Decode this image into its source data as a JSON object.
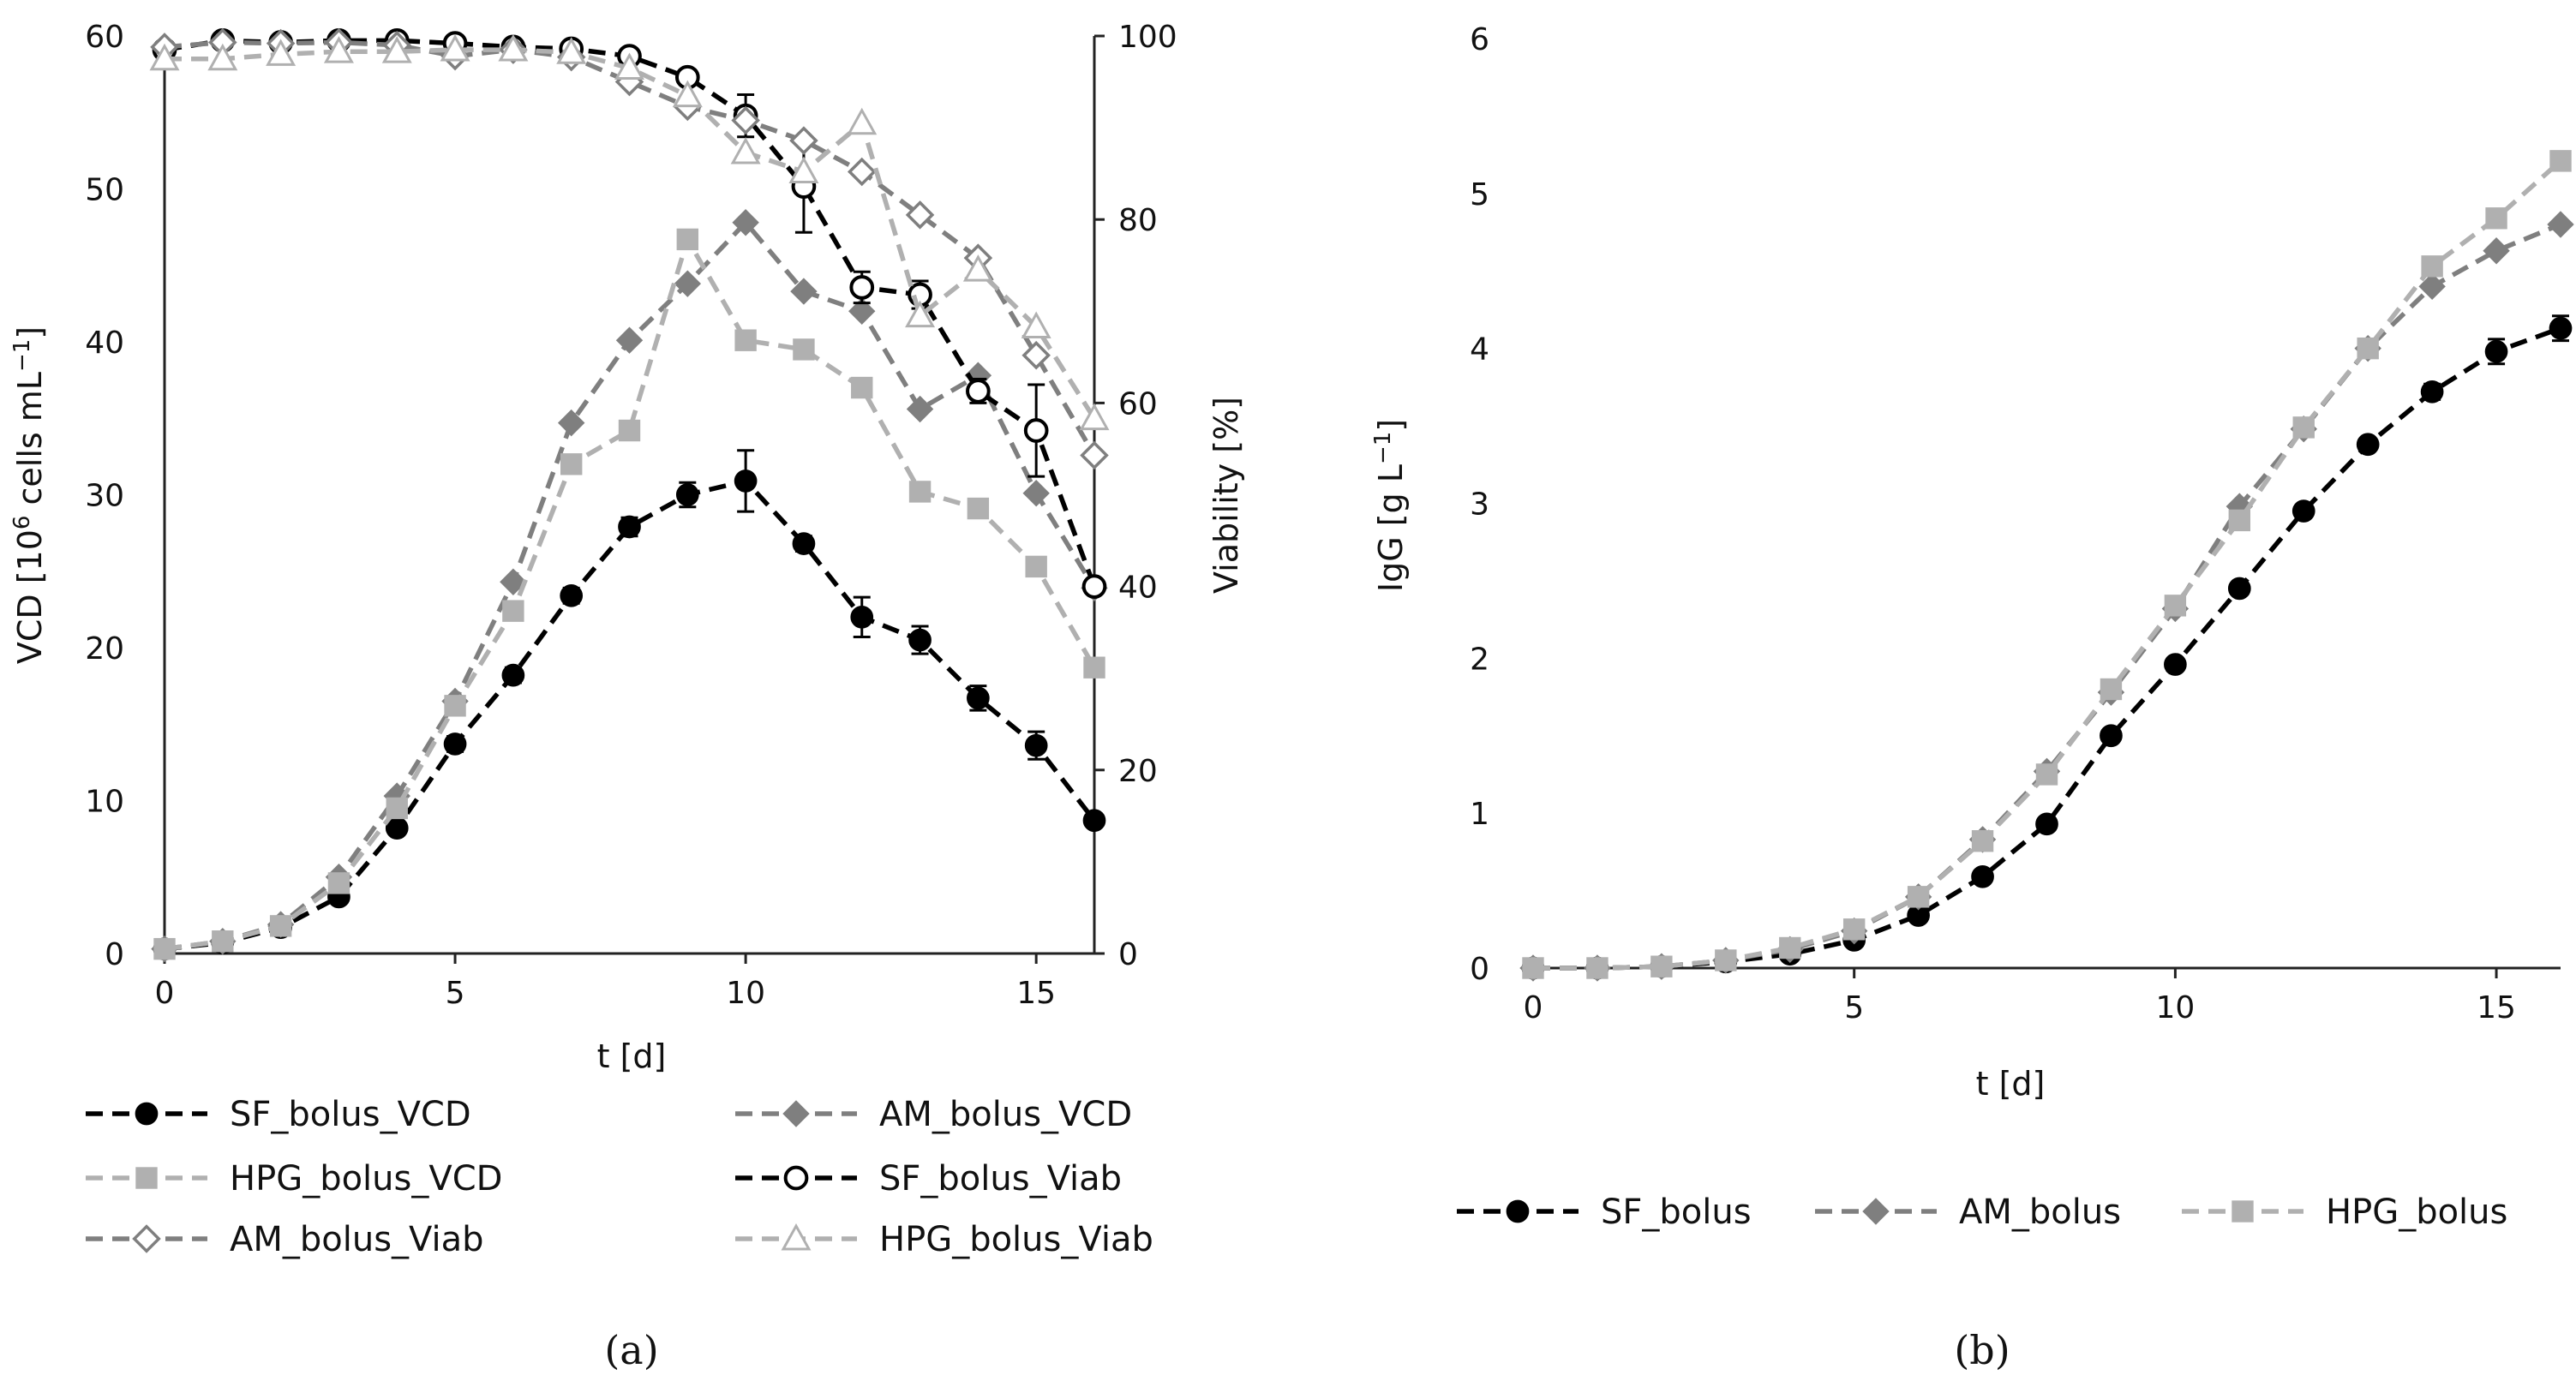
{
  "chart_data": [
    {
      "panel_label": "(a)",
      "type": "line",
      "xlabel": "t [d]",
      "ylabel": "VCD [10",
      "ylabel_sup": "6",
      "ylabel_mid": " cells mL",
      "ylabel_sup2": "−1",
      "ylabel_end": "]",
      "y2label": "Viability [%]",
      "xlim": [
        0,
        16
      ],
      "ylim": [
        0,
        60
      ],
      "y2lim": [
        0,
        100
      ],
      "xticks": [
        0,
        5,
        10,
        15
      ],
      "yticks": [
        0,
        10,
        20,
        30,
        40,
        50,
        60
      ],
      "y2ticks": [
        0,
        20,
        40,
        60,
        80,
        100
      ],
      "series": [
        {
          "name": "SF_bolus_VCD",
          "axis": "left",
          "marker": "circle",
          "fill": "#000000",
          "stroke": "#000000",
          "line": "#000000",
          "x": [
            0,
            1,
            2,
            3,
            4,
            5,
            6,
            7,
            8,
            9,
            10,
            11,
            12,
            13,
            14,
            15,
            16
          ],
          "values": [
            0.3,
            0.7,
            1.7,
            3.7,
            8.2,
            13.7,
            18.2,
            23.4,
            27.9,
            30.0,
            30.9,
            26.8,
            22.0,
            20.5,
            16.7,
            13.6,
            8.7
          ],
          "errors": [
            0.1,
            0.1,
            0.2,
            0.3,
            0.4,
            0.5,
            0.5,
            0.5,
            0.6,
            0.8,
            2.0,
            0.5,
            1.3,
            0.9,
            0.8,
            0.9,
            0.4
          ]
        },
        {
          "name": "AM_bolus_VCD",
          "axis": "left",
          "marker": "diamond",
          "fill": "#7f7f7f",
          "stroke": "#7f7f7f",
          "line": "#7f7f7f",
          "x": [
            0,
            1,
            2,
            3,
            4,
            5,
            6,
            7,
            8,
            9,
            10,
            11,
            12,
            13,
            14,
            15,
            16
          ],
          "values": [
            0.3,
            0.8,
            1.9,
            5.0,
            10.3,
            16.5,
            24.3,
            34.7,
            40.1,
            43.8,
            47.8,
            43.3,
            42.0,
            35.6,
            37.8,
            30.1,
            23.9
          ],
          "errors": []
        },
        {
          "name": "HPG_bolus_VCD",
          "axis": "left",
          "marker": "square",
          "fill": "#b0b0b0",
          "stroke": "#b0b0b0",
          "line": "#b0b0b0",
          "x": [
            0,
            1,
            2,
            3,
            4,
            5,
            6,
            7,
            8,
            9,
            10,
            11,
            12,
            13,
            14,
            15,
            16
          ],
          "values": [
            0.3,
            0.8,
            1.8,
            4.6,
            9.5,
            16.2,
            22.4,
            32.0,
            34.2,
            46.7,
            40.1,
            39.5,
            37.0,
            30.2,
            29.1,
            25.3,
            18.7
          ],
          "errors": []
        },
        {
          "name": "SF_bolus_Viab",
          "axis": "right",
          "marker": "circle-open",
          "fill": "#ffffff",
          "stroke": "#000000",
          "line": "#000000",
          "x": [
            0,
            1,
            2,
            3,
            4,
            5,
            6,
            7,
            8,
            9,
            10,
            11,
            12,
            13,
            14,
            15,
            16
          ],
          "values": [
            98.5,
            99.5,
            99.3,
            99.5,
            99.5,
            99.2,
            98.8,
            98.6,
            97.8,
            95.5,
            91.3,
            83.6,
            72.6,
            71.8,
            61.3,
            57.0,
            40.0
          ],
          "errors": [
            0.3,
            0.2,
            0.2,
            0.2,
            0.2,
            0.2,
            0.2,
            0.3,
            0.4,
            0.6,
            2.3,
            5.0,
            1.7,
            1.5,
            1.3,
            5.0,
            0.5
          ]
        },
        {
          "name": "AM_bolus_Viab",
          "axis": "right",
          "marker": "diamond-open",
          "fill": "#ffffff",
          "stroke": "#7f7f7f",
          "line": "#7f7f7f",
          "x": [
            0,
            1,
            2,
            3,
            4,
            5,
            6,
            7,
            8,
            9,
            10,
            11,
            12,
            13,
            14,
            15,
            16
          ],
          "values": [
            98.8,
            99.3,
            99.2,
            99.3,
            99.0,
            97.8,
            98.5,
            97.7,
            95.0,
            92.3,
            90.8,
            88.6,
            85.2,
            80.5,
            75.8,
            65.2,
            54.3
          ],
          "errors": []
        },
        {
          "name": "HPG_bolus_Viab",
          "axis": "right",
          "marker": "triangle-open",
          "fill": "#ffffff",
          "stroke": "#b0b0b0",
          "line": "#b0b0b0",
          "x": [
            0,
            1,
            2,
            3,
            4,
            5,
            6,
            7,
            8,
            9,
            10,
            11,
            12,
            13,
            14,
            15,
            16
          ],
          "values": [
            97.5,
            97.5,
            98.0,
            98.3,
            98.3,
            98.5,
            98.5,
            98.2,
            96.5,
            93.5,
            87.3,
            85.2,
            90.5,
            69.5,
            74.5,
            68.3,
            58.3
          ],
          "errors": []
        }
      ],
      "legend": [
        "SF_bolus_VCD",
        "AM_bolus_VCD",
        "HPG_bolus_VCD",
        "SF_bolus_Viab",
        "AM_bolus_Viab",
        "HPG_bolus_Viab"
      ]
    },
    {
      "panel_label": "(b)",
      "type": "line",
      "xlabel": "t [d]",
      "ylabel": "IgG [g L",
      "ylabel_sup": "−1",
      "ylabel_end": "]",
      "xlim": [
        0,
        16
      ],
      "ylim": [
        0,
        6
      ],
      "xticks": [
        0,
        5,
        10,
        15
      ],
      "yticks": [
        0,
        1,
        2,
        3,
        4,
        5,
        6
      ],
      "series": [
        {
          "name": "SF_bolus",
          "marker": "circle",
          "fill": "#000000",
          "stroke": "#000000",
          "line": "#000000",
          "x": [
            0,
            1,
            2,
            3,
            4,
            5,
            6,
            7,
            8,
            9,
            10,
            11,
            12,
            13,
            14,
            15,
            16
          ],
          "values": [
            0.0,
            0.0,
            0.01,
            0.04,
            0.09,
            0.18,
            0.34,
            0.59,
            0.93,
            1.5,
            1.96,
            2.45,
            2.95,
            3.38,
            3.72,
            3.98,
            4.13
          ],
          "errors": [
            0,
            0,
            0,
            0,
            0,
            0,
            0,
            0,
            0,
            0,
            0,
            0,
            0,
            0,
            0.05,
            0.08,
            0.08
          ]
        },
        {
          "name": "AM_bolus",
          "marker": "diamond",
          "fill": "#7f7f7f",
          "stroke": "#7f7f7f",
          "line": "#7f7f7f",
          "x": [
            0,
            1,
            2,
            3,
            4,
            5,
            6,
            7,
            8,
            9,
            10,
            11,
            12,
            13,
            14,
            15,
            16
          ],
          "values": [
            0.0,
            0.0,
            0.01,
            0.05,
            0.12,
            0.24,
            0.46,
            0.83,
            1.27,
            1.78,
            2.32,
            2.98,
            3.48,
            4.0,
            4.4,
            4.63,
            4.8
          ],
          "errors": []
        },
        {
          "name": "HPG_bolus",
          "marker": "square",
          "fill": "#b0b0b0",
          "stroke": "#b0b0b0",
          "line": "#b0b0b0",
          "x": [
            0,
            1,
            2,
            3,
            4,
            5,
            6,
            7,
            8,
            9,
            10,
            11,
            12,
            13,
            14,
            15,
            16
          ],
          "values": [
            0.0,
            0.0,
            0.01,
            0.05,
            0.13,
            0.25,
            0.46,
            0.82,
            1.25,
            1.8,
            2.34,
            2.89,
            3.49,
            4.0,
            4.53,
            4.84,
            5.21
          ],
          "errors": []
        }
      ],
      "legend": [
        "SF_bolus",
        "AM_bolus",
        "HPG_bolus"
      ]
    }
  ]
}
